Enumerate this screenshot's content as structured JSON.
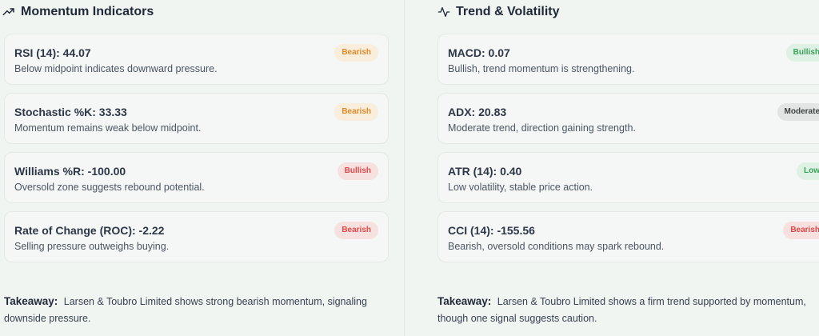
{
  "left": {
    "title": "Momentum Indicators",
    "icon": "trending-up-icon",
    "cards": [
      {
        "name": "RSI (14): 44.07",
        "desc": "Below midpoint indicates downward pressure.",
        "badge": "Bearish",
        "badge_color": "orange"
      },
      {
        "name": "Stochastic %K: 33.33",
        "desc": "Momentum remains weak below midpoint.",
        "badge": "Bearish",
        "badge_color": "orange"
      },
      {
        "name": "Williams %R: -100.00",
        "desc": "Oversold zone suggests rebound potential.",
        "badge": "Bullish",
        "badge_color": "red"
      },
      {
        "name": "Rate of Change (ROC): -2.22",
        "desc": "Selling pressure outweighs buying.",
        "badge": "Bearish",
        "badge_color": "red"
      }
    ],
    "takeaway_label": "Takeaway:",
    "takeaway": "Larsen & Toubro Limited shows strong bearish momentum, signaling downside pressure."
  },
  "right": {
    "title": "Trend & Volatility",
    "icon": "activity-icon",
    "cards": [
      {
        "name": "MACD: 0.07",
        "desc": "Bullish, trend momentum is strengthening.",
        "badge": "Bullish",
        "badge_color": "green"
      },
      {
        "name": "ADX: 20.83",
        "desc": "Moderate trend, direction gaining strength.",
        "badge": "Moderate",
        "badge_color": "gray"
      },
      {
        "name": "ATR (14): 0.40",
        "desc": "Low volatility, stable price action.",
        "badge": "Low",
        "badge_color": "green"
      },
      {
        "name": "CCI (14): -155.56",
        "desc": "Bearish, oversold conditions may spark rebound.",
        "badge": "Bearish",
        "badge_color": "red"
      }
    ],
    "takeaway_label": "Takeaway:",
    "takeaway": "Larsen & Toubro Limited shows a firm trend supported by momentum, though one signal suggests caution."
  }
}
